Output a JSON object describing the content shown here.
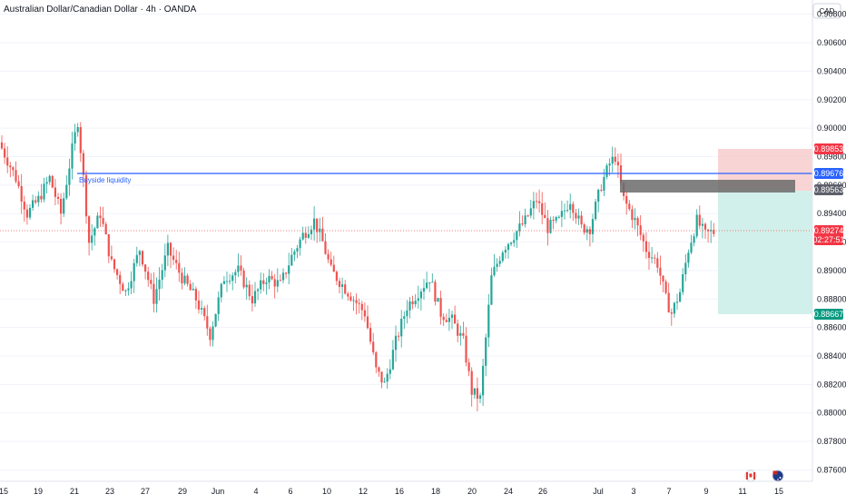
{
  "header": {
    "title": "Australian Dollar/Canadian Dollar · 4h · OANDA",
    "currency_label": "CAD"
  },
  "annotations": {
    "buyside_label": "Buyside liquidity"
  },
  "colors": {
    "up": "#26a69a",
    "down": "#ef5350",
    "level_line": "#2962ff",
    "stop_zone": "#f7c5c5",
    "target_zone": "#cdeee9",
    "order_block": "#6b6b6b",
    "grid": "#f0f3fa"
  },
  "price_axis": {
    "ticks": [
      "0.90800",
      "0.90600",
      "0.90400",
      "0.90200",
      "0.90000",
      "0.89800",
      "0.89600",
      "0.89400",
      "0.89200",
      "0.89000",
      "0.88800",
      "0.88600",
      "0.88400",
      "0.88200",
      "0.88000",
      "0.87800",
      "0.87600"
    ]
  },
  "price_tags": {
    "stop": "0.89853",
    "level": "0.89676",
    "entry": "0.89563",
    "current": "0.89274",
    "countdown": "02:27:51",
    "target": "0.88667"
  },
  "time_axis": {
    "labels": [
      "15",
      "19",
      "21",
      "23",
      "27",
      "29",
      "Jun",
      "4",
      "6",
      "10",
      "12",
      "16",
      "18",
      "20",
      "24",
      "26",
      "Jul",
      "3",
      "7",
      "9",
      "11",
      "15"
    ]
  },
  "chart_data": {
    "type": "candlestick",
    "title": "Australian Dollar/Canadian Dollar · 4h · OANDA",
    "ylim": [
      0.8752,
      0.909
    ],
    "levels": {
      "buyside_liquidity": 0.89676,
      "stop": 0.89853,
      "entry": 0.89563,
      "target": 0.88667,
      "last": 0.89274
    },
    "anchors": [
      [
        0,
        0.899
      ],
      [
        6,
        0.8965
      ],
      [
        10,
        0.894
      ],
      [
        14,
        0.895
      ],
      [
        18,
        0.8965
      ],
      [
        22,
        0.894
      ],
      [
        26,
        0.8985
      ],
      [
        28,
        0.9005
      ],
      [
        30,
        0.8965
      ],
      [
        32,
        0.892
      ],
      [
        36,
        0.894
      ],
      [
        40,
        0.8905
      ],
      [
        45,
        0.8885
      ],
      [
        50,
        0.8915
      ],
      [
        55,
        0.888
      ],
      [
        60,
        0.8915
      ],
      [
        65,
        0.8895
      ],
      [
        70,
        0.888
      ],
      [
        75,
        0.8855
      ],
      [
        80,
        0.8895
      ],
      [
        85,
        0.89
      ],
      [
        90,
        0.888
      ],
      [
        95,
        0.8895
      ],
      [
        100,
        0.889
      ],
      [
        104,
        0.891
      ],
      [
        108,
        0.8925
      ],
      [
        112,
        0.8935
      ],
      [
        115,
        0.892
      ],
      [
        118,
        0.89
      ],
      [
        122,
        0.889
      ],
      [
        126,
        0.888
      ],
      [
        130,
        0.887
      ],
      [
        134,
        0.883
      ],
      [
        137,
        0.882
      ],
      [
        141,
        0.885
      ],
      [
        145,
        0.8875
      ],
      [
        149,
        0.8885
      ],
      [
        153,
        0.8895
      ],
      [
        157,
        0.887
      ],
      [
        161,
        0.8865
      ],
      [
        165,
        0.885
      ],
      [
        168,
        0.8815
      ],
      [
        171,
        0.881
      ],
      [
        175,
        0.8895
      ],
      [
        179,
        0.8915
      ],
      [
        183,
        0.8925
      ],
      [
        187,
        0.8935
      ],
      [
        191,
        0.895
      ],
      [
        195,
        0.893
      ],
      [
        199,
        0.8935
      ],
      [
        203,
        0.895
      ],
      [
        207,
        0.893
      ],
      [
        210,
        0.893
      ],
      [
        214,
        0.896
      ],
      [
        217,
        0.8975
      ],
      [
        219,
        0.898
      ],
      [
        222,
        0.895
      ],
      [
        226,
        0.8935
      ],
      [
        230,
        0.8915
      ],
      [
        234,
        0.8905
      ],
      [
        237,
        0.888
      ],
      [
        239,
        0.887
      ],
      [
        242,
        0.8885
      ],
      [
        245,
        0.8915
      ],
      [
        248,
        0.8935
      ],
      [
        251,
        0.8925
      ],
      [
        253,
        0.8927
      ]
    ]
  }
}
